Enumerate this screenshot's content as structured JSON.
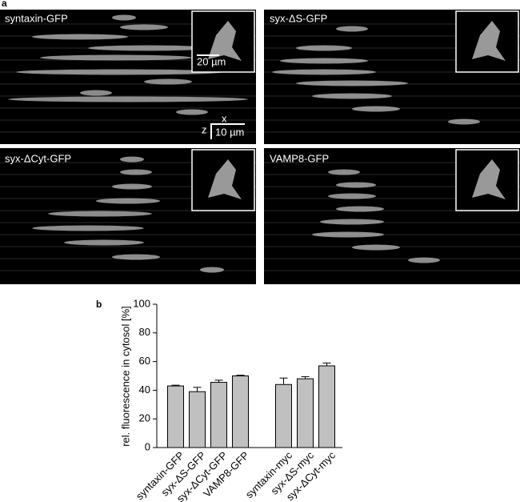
{
  "figure": {
    "panel_labels": [
      "a",
      "b"
    ],
    "panels": [
      {
        "title": "syntaxin-GFP",
        "inset_scale": "20 µm",
        "axis_x": "x",
        "axis_z": "z",
        "scale": "10 µm"
      },
      {
        "title": "syx-ΔS-GFP"
      },
      {
        "title": "syx-ΔCyt-GFP"
      },
      {
        "title": "VAMP8-GFP"
      }
    ]
  },
  "chart_data": {
    "type": "bar",
    "ylabel": "rel. fluorescence in cytosol [%]",
    "categories": [
      "syntaxin-GFP",
      "syx-ΔS-GFP",
      "syx-ΔCyt-GFP",
      "VAMP8-GFP",
      null,
      "syntaxin-myc",
      "syx-ΔS-myc",
      "syx-ΔCyt-myc"
    ],
    "values": [
      43,
      39,
      45.5,
      50,
      null,
      44,
      48,
      57
    ],
    "errors": [
      0.5,
      3,
      1.5,
      0.5,
      null,
      4.5,
      1.5,
      2
    ],
    "color": "#c0c0c0",
    "ylim": [
      0,
      100
    ],
    "yticks": [
      0,
      20,
      40,
      60,
      80,
      100
    ]
  }
}
